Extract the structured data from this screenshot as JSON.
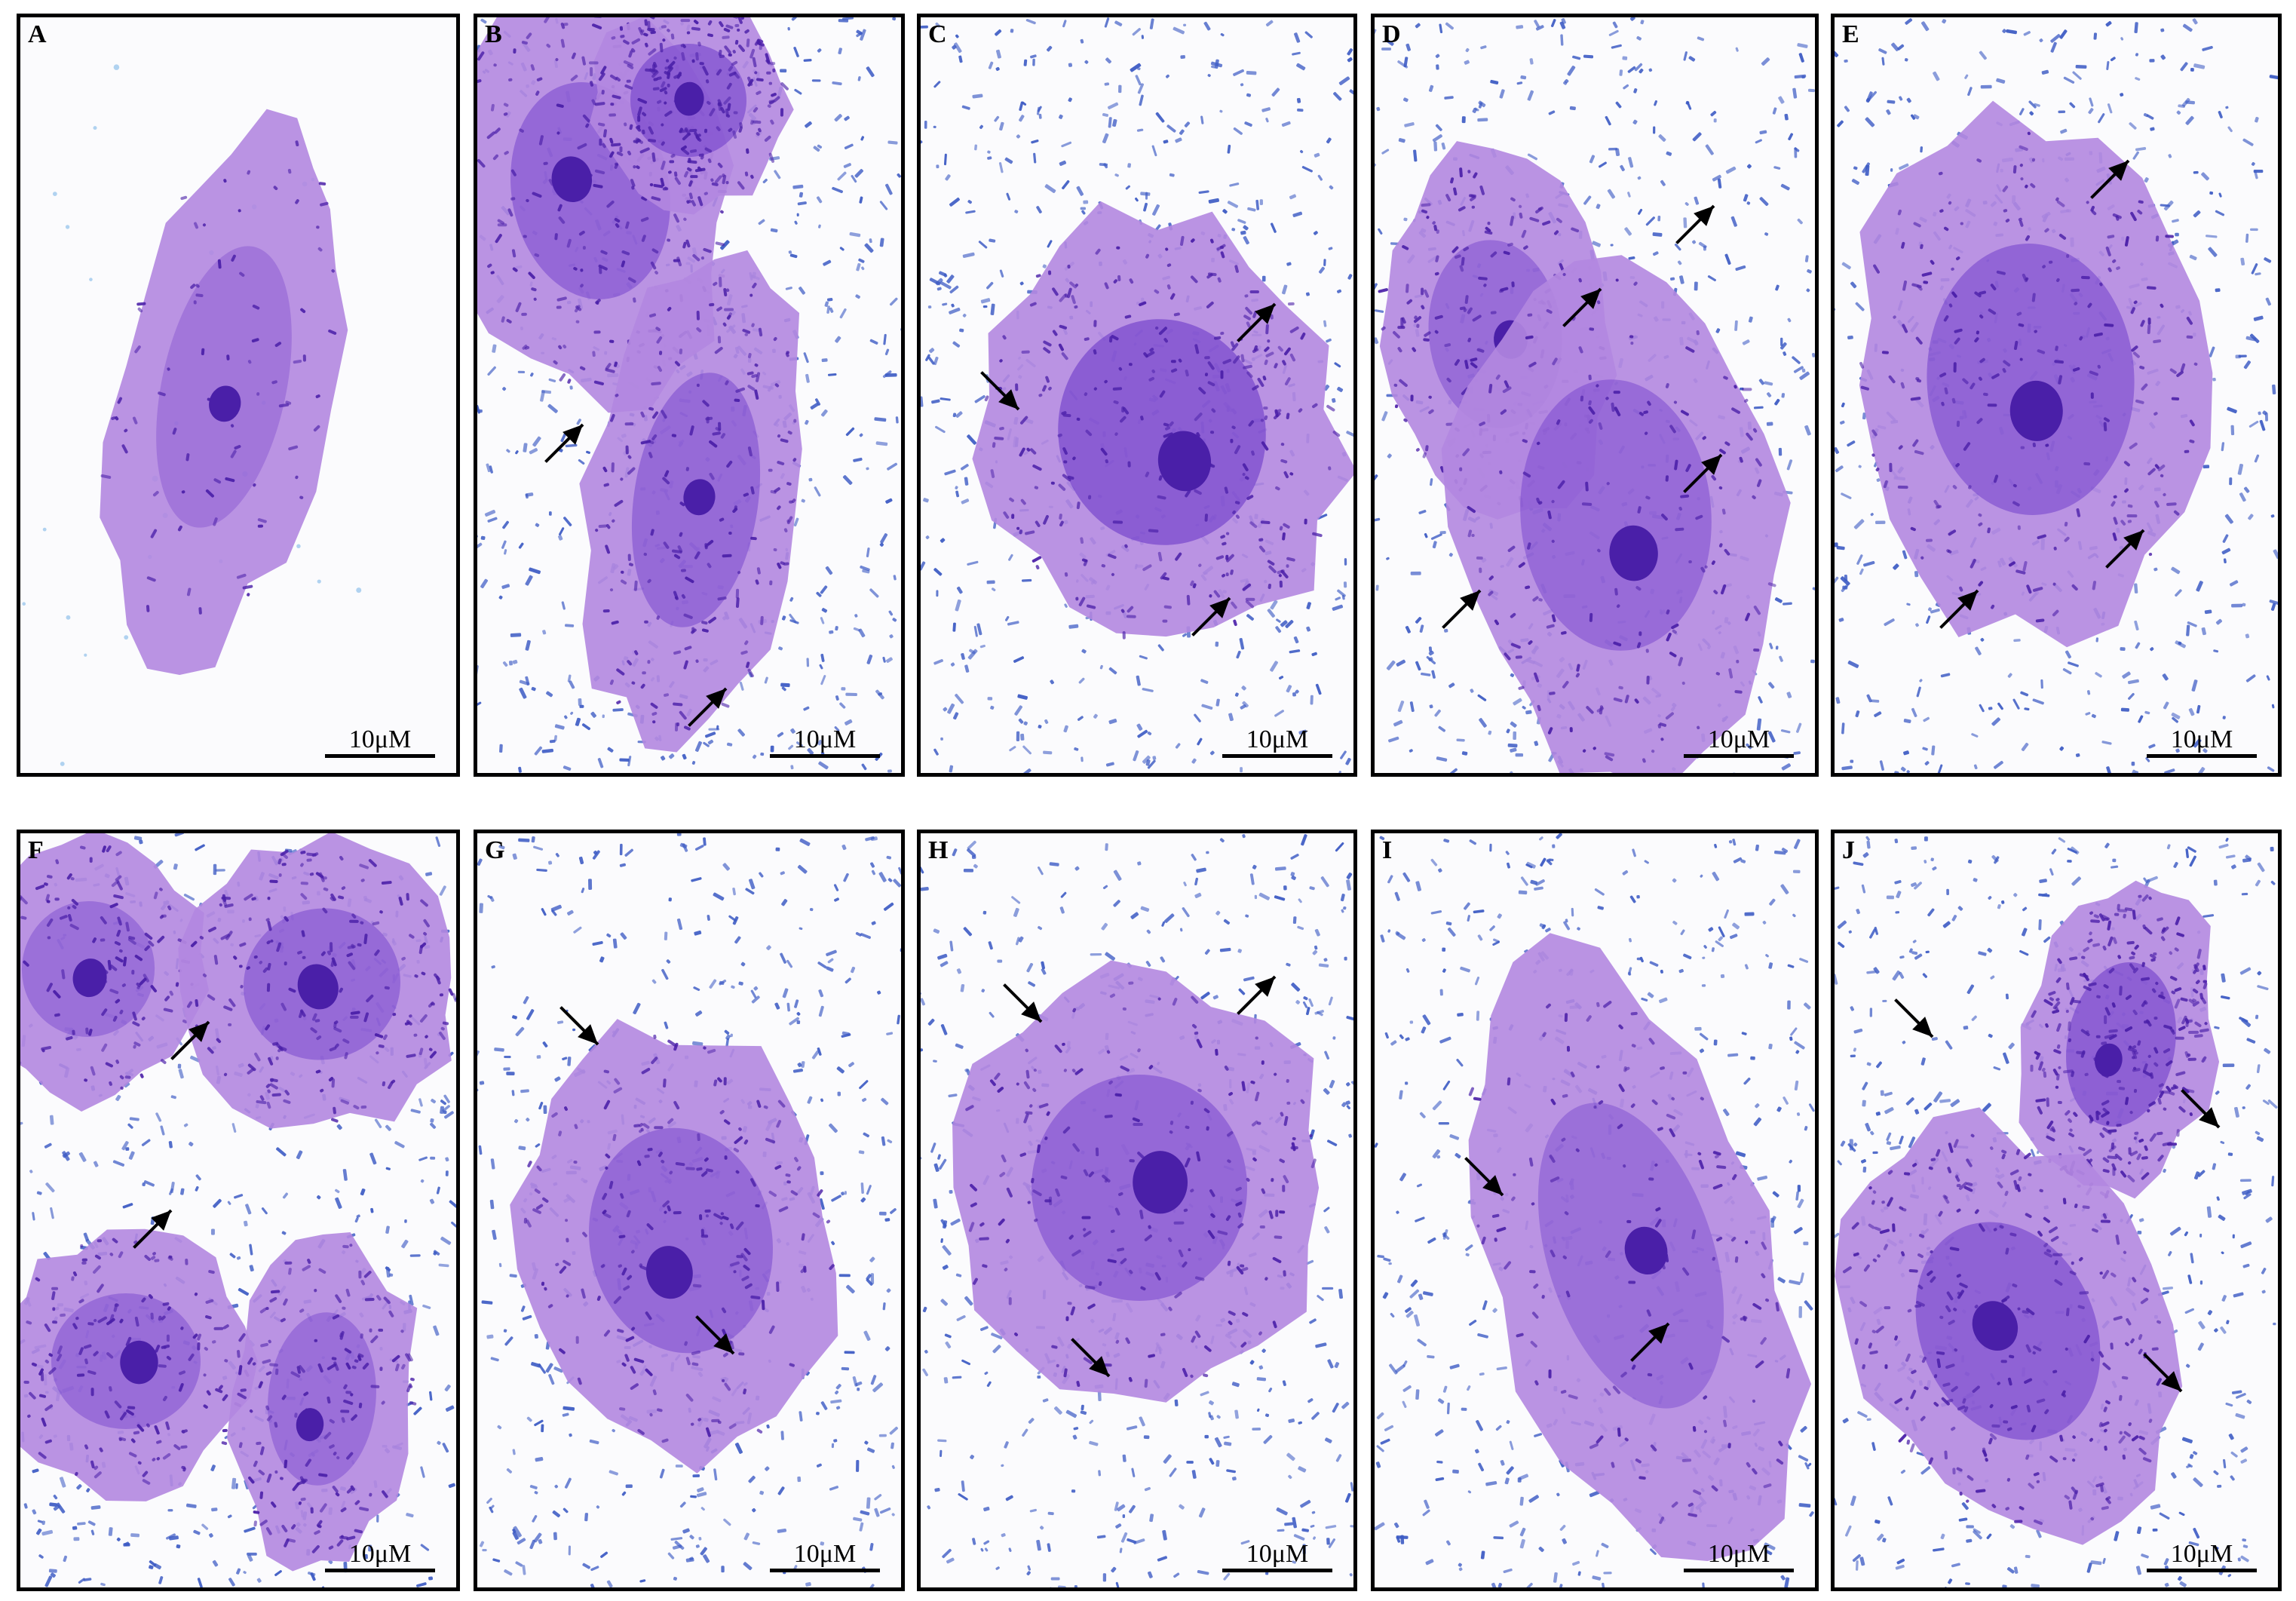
{
  "figure": {
    "scale_text": "10μM",
    "panels": [
      {
        "label": "A",
        "cells": 1,
        "arrows": 0
      },
      {
        "label": "B",
        "cells": 3,
        "arrows": 2
      },
      {
        "label": "C",
        "cells": 1,
        "arrows": 3
      },
      {
        "label": "D",
        "cells": 2,
        "arrows": 4
      },
      {
        "label": "E",
        "cells": 1,
        "arrows": 3
      },
      {
        "label": "F",
        "cells": 4,
        "arrows": 2
      },
      {
        "label": "G",
        "cells": 1,
        "arrows": 2
      },
      {
        "label": "H",
        "cells": 1,
        "arrows": 3
      },
      {
        "label": "I",
        "cells": 1,
        "arrows": 2
      },
      {
        "label": "J",
        "cells": 2,
        "arrows": 3
      }
    ]
  },
  "colors": {
    "cytoplasm": "#b387e0",
    "nucleus": "#4a1fa8",
    "dense_stain": "#6a36c8",
    "bacteria": "#3d5bc4",
    "background": "#fbfbfd",
    "border": "#000000",
    "arrow": "#000000"
  }
}
